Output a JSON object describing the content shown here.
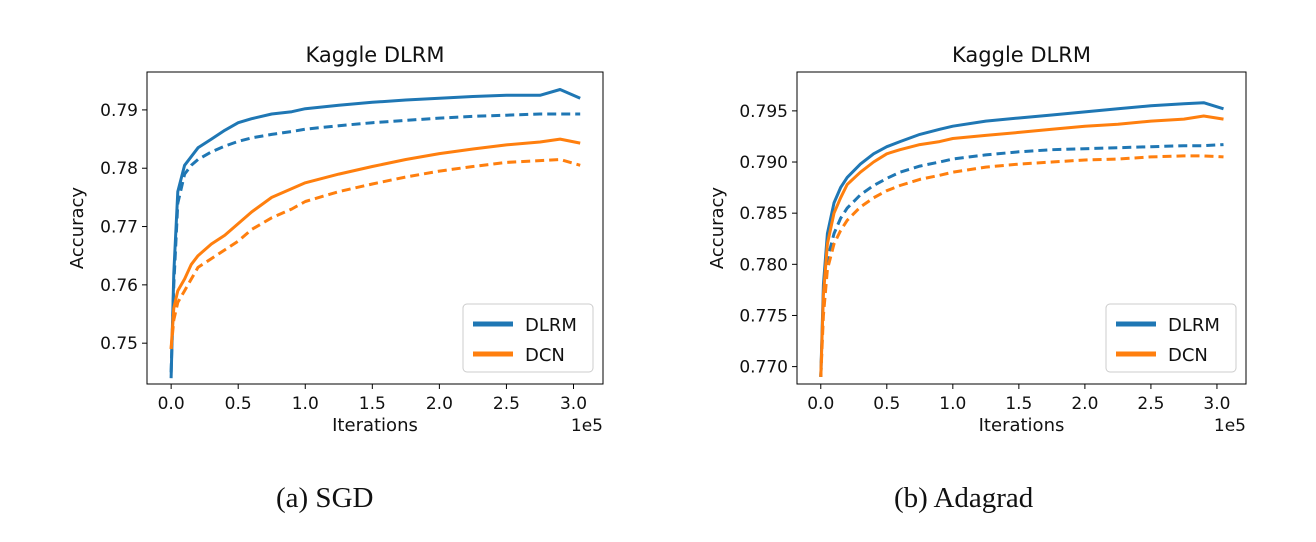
{
  "captions": {
    "a": "(a) SGD",
    "b": "(b) Adagrad"
  },
  "style": {
    "colors": {
      "DLRM": "#1f77b4",
      "DCN": "#ff7f0e"
    },
    "line_styles": {
      "train": "dashed",
      "test": "solid"
    }
  },
  "chart_data": [
    {
      "type": "line",
      "title": "Kaggle DLRM",
      "xlabel": "Iterations",
      "ylabel": "Accuracy",
      "x_offset_text": "1e5",
      "xlim": [
        -0.18,
        3.22
      ],
      "ylim": [
        0.743,
        0.7965
      ],
      "xticks": [
        0.0,
        0.5,
        1.0,
        1.5,
        2.0,
        2.5,
        3.0
      ],
      "xtick_labels": [
        "0.0",
        "0.5",
        "1.0",
        "1.5",
        "2.0",
        "2.5",
        "3.0"
      ],
      "yticks": [
        0.75,
        0.76,
        0.77,
        0.78,
        0.79
      ],
      "ytick_labels": [
        "0.75",
        "0.76",
        "0.77",
        "0.78",
        "0.79"
      ],
      "grid": false,
      "legend": {
        "position": "lower-right",
        "entries": [
          "DLRM",
          "DCN"
        ]
      },
      "x": [
        0.0,
        0.02,
        0.05,
        0.1,
        0.15,
        0.2,
        0.3,
        0.4,
        0.5,
        0.6,
        0.75,
        0.9,
        1.0,
        1.25,
        1.5,
        1.75,
        2.0,
        2.25,
        2.5,
        2.75,
        2.9,
        3.05
      ],
      "series": [
        {
          "name": "DLRM",
          "style": "solid",
          "values": [
            0.744,
            0.762,
            0.776,
            0.7805,
            0.782,
            0.7835,
            0.785,
            0.7865,
            0.7878,
            0.7885,
            0.7893,
            0.7897,
            0.7902,
            0.7908,
            0.7913,
            0.7917,
            0.792,
            0.7923,
            0.7925,
            0.7925,
            0.7935,
            0.792
          ]
        },
        {
          "name": "DLRM",
          "style": "dashed",
          "values": [
            0.745,
            0.76,
            0.774,
            0.779,
            0.7805,
            0.7815,
            0.7828,
            0.7838,
            0.7846,
            0.7852,
            0.7858,
            0.7863,
            0.7867,
            0.7873,
            0.7878,
            0.7882,
            0.7886,
            0.7889,
            0.7891,
            0.7893,
            0.7893,
            0.7893
          ]
        },
        {
          "name": "DCN",
          "style": "solid",
          "values": [
            0.749,
            0.756,
            0.759,
            0.761,
            0.7635,
            0.765,
            0.767,
            0.7685,
            0.7705,
            0.7725,
            0.775,
            0.7765,
            0.7775,
            0.779,
            0.7803,
            0.7815,
            0.7825,
            0.7833,
            0.784,
            0.7845,
            0.785,
            0.7843
          ]
        },
        {
          "name": "DCN",
          "style": "dashed",
          "values": [
            0.749,
            0.754,
            0.757,
            0.759,
            0.761,
            0.763,
            0.7645,
            0.766,
            0.7675,
            0.7695,
            0.7715,
            0.773,
            0.7743,
            0.776,
            0.7773,
            0.7785,
            0.7795,
            0.7803,
            0.781,
            0.7813,
            0.7815,
            0.7805
          ]
        }
      ]
    },
    {
      "type": "line",
      "title": "Kaggle DLRM",
      "xlabel": "Iterations",
      "ylabel": "Accuracy",
      "x_offset_text": "1e5",
      "xlim": [
        -0.18,
        3.22
      ],
      "ylim": [
        0.7683,
        0.7988
      ],
      "xticks": [
        0.0,
        0.5,
        1.0,
        1.5,
        2.0,
        2.5,
        3.0
      ],
      "xtick_labels": [
        "0.0",
        "0.5",
        "1.0",
        "1.5",
        "2.0",
        "2.5",
        "3.0"
      ],
      "yticks": [
        0.77,
        0.775,
        0.78,
        0.785,
        0.79,
        0.795
      ],
      "ytick_labels": [
        "0.770",
        "0.775",
        "0.780",
        "0.785",
        "0.790",
        "0.795"
      ],
      "grid": false,
      "legend": {
        "position": "lower-right",
        "entries": [
          "DLRM",
          "DCN"
        ]
      },
      "x": [
        0.0,
        0.02,
        0.05,
        0.1,
        0.15,
        0.2,
        0.3,
        0.4,
        0.5,
        0.6,
        0.75,
        0.9,
        1.0,
        1.25,
        1.5,
        1.75,
        2.0,
        2.25,
        2.5,
        2.75,
        2.9,
        3.05
      ],
      "series": [
        {
          "name": "DLRM",
          "style": "solid",
          "values": [
            0.769,
            0.778,
            0.783,
            0.786,
            0.7875,
            0.7885,
            0.7898,
            0.7908,
            0.7915,
            0.792,
            0.7927,
            0.7932,
            0.7935,
            0.794,
            0.7943,
            0.7946,
            0.7949,
            0.7952,
            0.7955,
            0.7957,
            0.7958,
            0.7952
          ]
        },
        {
          "name": "DLRM",
          "style": "dashed",
          "values": [
            0.769,
            0.776,
            0.7805,
            0.783,
            0.7845,
            0.7855,
            0.7868,
            0.7877,
            0.7884,
            0.789,
            0.7896,
            0.79,
            0.7903,
            0.7907,
            0.791,
            0.7912,
            0.7913,
            0.7914,
            0.7915,
            0.7916,
            0.7916,
            0.7917
          ]
        },
        {
          "name": "DCN",
          "style": "solid",
          "values": [
            0.769,
            0.777,
            0.782,
            0.785,
            0.7865,
            0.7878,
            0.789,
            0.79,
            0.7908,
            0.7912,
            0.7917,
            0.792,
            0.7923,
            0.7926,
            0.7929,
            0.7932,
            0.7935,
            0.7937,
            0.794,
            0.7942,
            0.7945,
            0.7942
          ]
        },
        {
          "name": "DCN",
          "style": "dashed",
          "values": [
            0.769,
            0.775,
            0.7795,
            0.782,
            0.7833,
            0.7843,
            0.7856,
            0.7865,
            0.7872,
            0.7877,
            0.7883,
            0.7887,
            0.789,
            0.7895,
            0.7898,
            0.79,
            0.7902,
            0.7903,
            0.7905,
            0.7906,
            0.7906,
            0.7905
          ]
        }
      ]
    }
  ]
}
